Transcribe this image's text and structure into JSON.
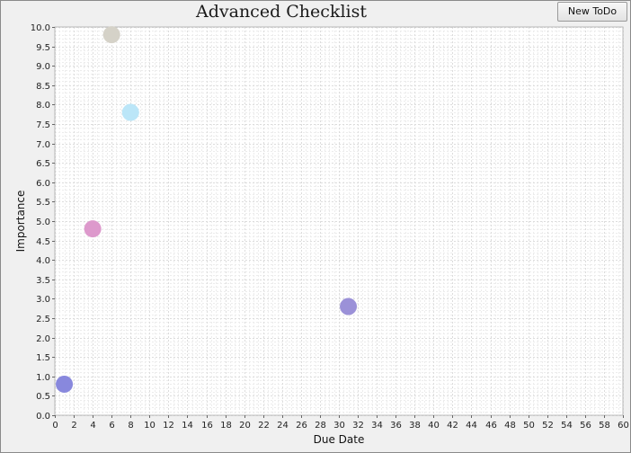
{
  "window": {
    "title": "Advanced Checklist"
  },
  "toolbar": {
    "new_todo_label": "New ToDo"
  },
  "chart_data": {
    "type": "scatter",
    "title": "Advanced Checklist",
    "xlabel": "Due Date",
    "ylabel": "Importance",
    "xlim": [
      0,
      60
    ],
    "ylim": [
      0,
      10
    ],
    "x_ticks": [
      "0",
      "2",
      "4",
      "6",
      "8",
      "10",
      "12",
      "14",
      "16",
      "18",
      "20",
      "22",
      "24",
      "26",
      "28",
      "30",
      "32",
      "34",
      "36",
      "38",
      "40",
      "42",
      "44",
      "46",
      "48",
      "50",
      "52",
      "54",
      "56",
      "58",
      "60"
    ],
    "y_ticks": [
      "0.0",
      "0.5",
      "1.0",
      "1.5",
      "2.0",
      "2.5",
      "3.0",
      "3.5",
      "4.0",
      "4.5",
      "5.0",
      "5.5",
      "6.0",
      "6.5",
      "7.0",
      "7.5",
      "8.0",
      "8.5",
      "9.0",
      "9.5",
      "10.0"
    ],
    "grid": true,
    "points": [
      {
        "x": 1,
        "y": 0.8,
        "color": "#8888dd"
      },
      {
        "x": 4,
        "y": 4.8,
        "color": "#dd99cc"
      },
      {
        "x": 6,
        "y": 9.8,
        "color": "#d5d2c8"
      },
      {
        "x": 8,
        "y": 7.8,
        "color": "#bbe6f8"
      },
      {
        "x": 31,
        "y": 2.8,
        "color": "#9b91d8"
      }
    ]
  }
}
